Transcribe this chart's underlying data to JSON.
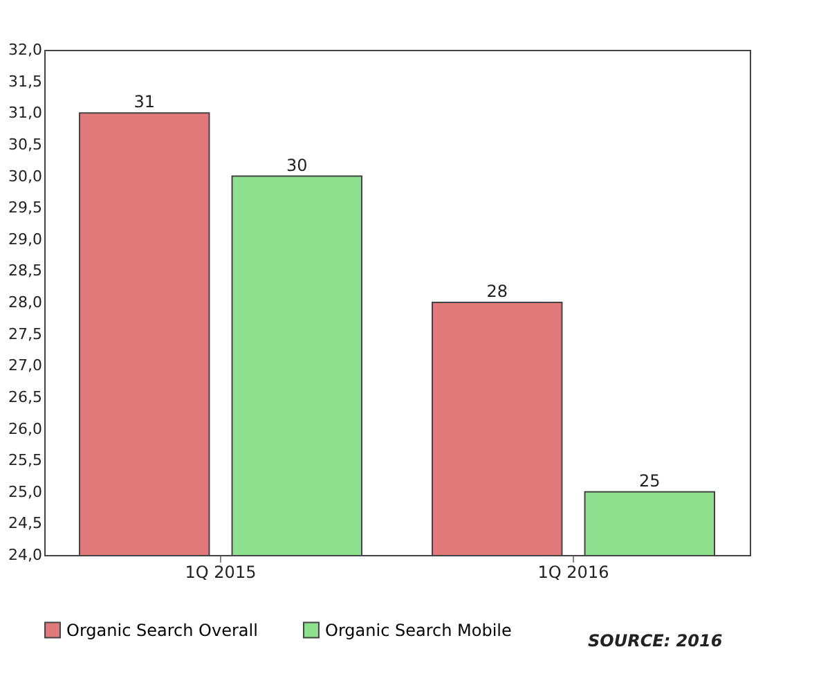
{
  "chart_data": {
    "type": "bar",
    "categories": [
      "1Q 2015",
      "1Q 2016"
    ],
    "series": [
      {
        "name": "Organic Search Overall",
        "color": "#e07a7a",
        "values": [
          31,
          28
        ]
      },
      {
        "name": "Organic Search Mobile",
        "color": "#8ee08e",
        "values": [
          30,
          25
        ]
      }
    ],
    "ylim": [
      24,
      32
    ],
    "yticks": [
      {
        "value": 24,
        "label": "24,0"
      },
      {
        "value": 24.5,
        "label": "24,5"
      },
      {
        "value": 25,
        "label": "25,0"
      },
      {
        "value": 25.5,
        "label": "25,5"
      },
      {
        "value": 26,
        "label": "26,0"
      },
      {
        "value": 26.5,
        "label": "26,5"
      },
      {
        "value": 27,
        "label": "27,0"
      },
      {
        "value": 27.5,
        "label": "27,5"
      },
      {
        "value": 28,
        "label": "28,0"
      },
      {
        "value": 28.5,
        "label": "28,5"
      },
      {
        "value": 29,
        "label": "29,0"
      },
      {
        "value": 29.5,
        "label": "29,5"
      },
      {
        "value": 30,
        "label": "30,0"
      },
      {
        "value": 30.5,
        "label": "30,5"
      },
      {
        "value": 31,
        "label": "31,0"
      },
      {
        "value": 31.5,
        "label": "31,5"
      },
      {
        "value": 32,
        "label": "32,0"
      }
    ],
    "data_labels": true,
    "legend": "bottom",
    "grid": false,
    "annotations": [
      "SOURCE: 2016"
    ]
  }
}
